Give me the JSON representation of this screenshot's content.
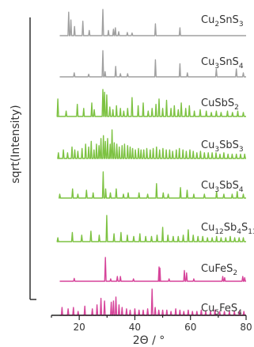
{
  "chart_data": {
    "type": "line",
    "title": "",
    "xlabel": "2Θ / °",
    "ylabel": "sqrt(Intensity)",
    "xlim": [
      10,
      80
    ],
    "xticks": [
      20,
      40,
      60,
      80
    ],
    "grid": false,
    "legend": "labels beside each trace",
    "series": [
      {
        "name": "Cu2SnS3",
        "label_parts": [
          [
            "Cu",
            "n"
          ],
          [
            "2",
            "s"
          ],
          [
            "SnS",
            "n"
          ],
          [
            "3",
            "s"
          ]
        ],
        "color": "#a0a0a0",
        "peaks": [
          [
            16.2,
            0.9
          ],
          [
            17.0,
            0.6
          ],
          [
            18.3,
            0.35
          ],
          [
            21.3,
            0.55
          ],
          [
            23.6,
            0.2
          ],
          [
            28.5,
            1.0
          ],
          [
            30.5,
            0.2
          ],
          [
            32.3,
            0.25
          ],
          [
            33.0,
            0.3
          ],
          [
            34.2,
            0.15
          ],
          [
            37.3,
            0.12
          ],
          [
            39.0,
            0.1
          ],
          [
            47.4,
            0.45
          ],
          [
            56.2,
            0.3
          ]
        ]
      },
      {
        "name": "Cu3SnS4",
        "label_parts": [
          [
            "Cu",
            "n"
          ],
          [
            "3",
            "s"
          ],
          [
            "SnS",
            "n"
          ],
          [
            "4",
            "s"
          ]
        ],
        "color": "#a0a0a0",
        "peaks": [
          [
            18.2,
            0.15
          ],
          [
            23.4,
            0.1
          ],
          [
            28.5,
            1.0
          ],
          [
            29.3,
            0.2
          ],
          [
            33.1,
            0.4
          ],
          [
            34.8,
            0.12
          ],
          [
            37.4,
            0.12
          ],
          [
            47.4,
            0.65
          ],
          [
            56.2,
            0.5
          ],
          [
            58.9,
            0.15
          ],
          [
            69.3,
            0.3
          ],
          [
            76.5,
            0.3
          ],
          [
            79.0,
            0.15
          ]
        ]
      },
      {
        "name": "CuSbS2",
        "label_parts": [
          [
            "CuSbS",
            "n"
          ],
          [
            "2",
            "s"
          ]
        ],
        "color": "#7dc242",
        "peaks": [
          [
            12.3,
            0.65
          ],
          [
            15.3,
            0.2
          ],
          [
            19.3,
            0.45
          ],
          [
            21.6,
            0.3
          ],
          [
            24.5,
            0.5
          ],
          [
            25.4,
            0.25
          ],
          [
            28.5,
            1.0
          ],
          [
            29.1,
            0.9
          ],
          [
            29.9,
            0.8
          ],
          [
            31.0,
            0.35
          ],
          [
            32.1,
            0.25
          ],
          [
            33.4,
            0.4
          ],
          [
            34.8,
            0.3
          ],
          [
            36.0,
            0.2
          ],
          [
            37.4,
            0.3
          ],
          [
            39.0,
            0.7
          ],
          [
            41.2,
            0.4
          ],
          [
            43.0,
            0.5
          ],
          [
            44.8,
            0.2
          ],
          [
            46.2,
            0.3
          ],
          [
            47.6,
            0.45
          ],
          [
            48.7,
            0.65
          ],
          [
            50.0,
            0.3
          ],
          [
            51.4,
            0.6
          ],
          [
            53.0,
            0.3
          ],
          [
            54.2,
            0.4
          ],
          [
            55.6,
            0.25
          ],
          [
            56.7,
            0.5
          ],
          [
            58.3,
            0.3
          ],
          [
            59.6,
            0.4
          ],
          [
            61.4,
            0.2
          ],
          [
            63.5,
            0.25
          ],
          [
            65.7,
            0.2
          ],
          [
            67.5,
            0.15
          ],
          [
            69.3,
            0.2
          ],
          [
            71.0,
            0.15
          ],
          [
            73.3,
            0.2
          ],
          [
            75.1,
            0.15
          ],
          [
            77.0,
            0.2
          ],
          [
            79.0,
            0.15
          ]
        ]
      },
      {
        "name": "Cu3SbS3",
        "label_parts": [
          [
            "Cu",
            "n"
          ],
          [
            "3",
            "s"
          ],
          [
            "SbS",
            "n"
          ],
          [
            "3",
            "s"
          ]
        ],
        "color": "#7dc242",
        "peaks": [
          [
            12.5,
            0.2
          ],
          [
            14.3,
            0.3
          ],
          [
            15.8,
            0.2
          ],
          [
            17.4,
            0.4
          ],
          [
            18.4,
            0.3
          ],
          [
            19.5,
            0.25
          ],
          [
            21.0,
            0.35
          ],
          [
            22.3,
            0.5
          ],
          [
            23.4,
            0.4
          ],
          [
            24.3,
            0.6
          ],
          [
            25.3,
            0.3
          ],
          [
            26.2,
            0.5
          ],
          [
            27.1,
            0.45
          ],
          [
            27.8,
            0.7
          ],
          [
            28.7,
            0.8
          ],
          [
            29.4,
            0.6
          ],
          [
            30.2,
            0.7
          ],
          [
            31.1,
            0.5
          ],
          [
            31.8,
            1.0
          ],
          [
            32.6,
            0.55
          ],
          [
            33.5,
            0.5
          ],
          [
            34.4,
            0.4
          ],
          [
            35.4,
            0.45
          ],
          [
            36.3,
            0.5
          ],
          [
            37.4,
            0.45
          ],
          [
            38.3,
            0.4
          ],
          [
            39.2,
            0.35
          ],
          [
            40.2,
            0.3
          ],
          [
            41.3,
            0.35
          ],
          [
            42.2,
            0.3
          ],
          [
            43.2,
            0.3
          ],
          [
            44.3,
            0.35
          ],
          [
            45.5,
            0.3
          ],
          [
            46.6,
            0.35
          ],
          [
            47.8,
            0.4
          ],
          [
            48.9,
            0.3
          ],
          [
            50.1,
            0.35
          ],
          [
            51.3,
            0.3
          ],
          [
            52.5,
            0.3
          ],
          [
            53.6,
            0.25
          ],
          [
            54.9,
            0.3
          ],
          [
            56.0,
            0.35
          ],
          [
            57.3,
            0.3
          ],
          [
            58.5,
            0.25
          ],
          [
            59.8,
            0.3
          ],
          [
            61.0,
            0.25
          ],
          [
            62.3,
            0.2
          ],
          [
            63.6,
            0.25
          ],
          [
            65.0,
            0.2
          ],
          [
            66.4,
            0.2
          ],
          [
            67.8,
            0.2
          ],
          [
            69.2,
            0.2
          ],
          [
            70.6,
            0.15
          ],
          [
            72.0,
            0.2
          ],
          [
            73.5,
            0.15
          ],
          [
            75.0,
            0.15
          ],
          [
            76.5,
            0.15
          ],
          [
            78.0,
            0.15
          ],
          [
            79.5,
            0.15
          ]
        ]
      },
      {
        "name": "Cu3SbS4",
        "label_parts": [
          [
            "Cu",
            "n"
          ],
          [
            "3",
            "s"
          ],
          [
            "SbS",
            "n"
          ],
          [
            "4",
            "s"
          ]
        ],
        "color": "#7dc242",
        "peaks": [
          [
            13.0,
            0.15
          ],
          [
            17.6,
            0.35
          ],
          [
            19.5,
            0.15
          ],
          [
            22.6,
            0.3
          ],
          [
            25.0,
            0.2
          ],
          [
            28.6,
            1.0
          ],
          [
            29.5,
            0.35
          ],
          [
            31.2,
            0.2
          ],
          [
            33.3,
            0.35
          ],
          [
            35.9,
            0.15
          ],
          [
            37.6,
            0.2
          ],
          [
            41.5,
            0.2
          ],
          [
            44.6,
            0.15
          ],
          [
            47.8,
            0.55
          ],
          [
            50.2,
            0.2
          ],
          [
            52.0,
            0.15
          ],
          [
            56.4,
            0.4
          ],
          [
            58.8,
            0.3
          ],
          [
            61.2,
            0.15
          ],
          [
            65.0,
            0.15
          ],
          [
            69.4,
            0.25
          ],
          [
            72.0,
            0.15
          ],
          [
            75.0,
            0.15
          ],
          [
            76.8,
            0.25
          ],
          [
            79.0,
            0.15
          ]
        ]
      },
      {
        "name": "Cu12Sb4S13",
        "label_parts": [
          [
            "Cu",
            "n"
          ],
          [
            "12",
            "s"
          ],
          [
            "Sb",
            "n"
          ],
          [
            "4",
            "s"
          ],
          [
            "S",
            "n"
          ],
          [
            "13",
            "s"
          ]
        ],
        "color": "#7dc242",
        "peaks": [
          [
            12.3,
            0.15
          ],
          [
            17.5,
            0.35
          ],
          [
            20.9,
            0.25
          ],
          [
            24.2,
            0.4
          ],
          [
            27.2,
            0.25
          ],
          [
            29.9,
            1.0
          ],
          [
            32.5,
            0.3
          ],
          [
            35.0,
            0.35
          ],
          [
            37.3,
            0.25
          ],
          [
            39.6,
            0.2
          ],
          [
            41.8,
            0.3
          ],
          [
            43.9,
            0.2
          ],
          [
            46.0,
            0.2
          ],
          [
            48.0,
            0.25
          ],
          [
            50.0,
            0.55
          ],
          [
            51.9,
            0.25
          ],
          [
            53.8,
            0.2
          ],
          [
            55.6,
            0.2
          ],
          [
            57.4,
            0.25
          ],
          [
            59.2,
            0.45
          ],
          [
            61.0,
            0.25
          ],
          [
            62.7,
            0.2
          ],
          [
            64.4,
            0.2
          ],
          [
            66.1,
            0.15
          ],
          [
            67.8,
            0.15
          ],
          [
            69.4,
            0.2
          ],
          [
            71.0,
            0.15
          ],
          [
            72.7,
            0.15
          ],
          [
            74.3,
            0.2
          ],
          [
            75.9,
            0.15
          ],
          [
            77.5,
            0.15
          ],
          [
            79.0,
            0.15
          ]
        ]
      },
      {
        "name": "CuFeS2",
        "label_parts": [
          [
            "CuFeS",
            "n"
          ],
          [
            "2",
            "s"
          ]
        ],
        "color": "#d6449a",
        "peaks": [
          [
            18.2,
            0.12
          ],
          [
            29.4,
            1.0
          ],
          [
            31.3,
            0.1
          ],
          [
            33.7,
            0.2
          ],
          [
            34.8,
            0.2
          ],
          [
            39.5,
            0.1
          ],
          [
            48.7,
            0.6
          ],
          [
            49.0,
            0.55
          ],
          [
            52.3,
            0.1
          ],
          [
            57.8,
            0.45
          ],
          [
            58.6,
            0.35
          ],
          [
            61.2,
            0.1
          ],
          [
            71.6,
            0.2
          ],
          [
            72.3,
            0.15
          ],
          [
            78.8,
            0.2
          ],
          [
            79.5,
            0.15
          ]
        ]
      },
      {
        "name": "Cu5FeS4",
        "label_parts": [
          [
            "Cu",
            "n"
          ],
          [
            "5",
            "s"
          ],
          [
            "FeS",
            "n"
          ],
          [
            "4",
            "s"
          ]
        ],
        "color": "#d6449a",
        "peaks": [
          [
            13.8,
            0.3
          ],
          [
            16.0,
            0.25
          ],
          [
            17.9,
            0.3
          ],
          [
            19.6,
            0.15
          ],
          [
            22.0,
            0.35
          ],
          [
            24.7,
            0.25
          ],
          [
            26.4,
            0.4
          ],
          [
            27.8,
            0.65
          ],
          [
            29.1,
            0.55
          ],
          [
            31.5,
            0.5
          ],
          [
            32.3,
            0.55
          ],
          [
            33.2,
            0.7
          ],
          [
            34.3,
            0.4
          ],
          [
            35.4,
            0.3
          ],
          [
            37.0,
            0.25
          ],
          [
            38.3,
            0.2
          ],
          [
            40.0,
            0.25
          ],
          [
            41.5,
            0.2
          ],
          [
            43.0,
            0.2
          ],
          [
            44.6,
            0.25
          ],
          [
            46.2,
            1.0
          ],
          [
            47.3,
            0.3
          ],
          [
            48.6,
            0.2
          ],
          [
            50.0,
            0.2
          ],
          [
            51.5,
            0.2
          ],
          [
            53.0,
            0.15
          ],
          [
            54.7,
            0.25
          ],
          [
            56.2,
            0.2
          ],
          [
            57.6,
            0.15
          ],
          [
            59.2,
            0.2
          ],
          [
            60.7,
            0.15
          ],
          [
            62.3,
            0.15
          ],
          [
            63.9,
            0.2
          ],
          [
            65.5,
            0.15
          ],
          [
            67.2,
            0.15
          ],
          [
            68.8,
            0.2
          ],
          [
            70.5,
            0.15
          ],
          [
            72.2,
            0.15
          ],
          [
            74.0,
            0.15
          ],
          [
            75.8,
            0.15
          ],
          [
            77.6,
            0.15
          ],
          [
            79.2,
            0.15
          ]
        ]
      }
    ]
  }
}
